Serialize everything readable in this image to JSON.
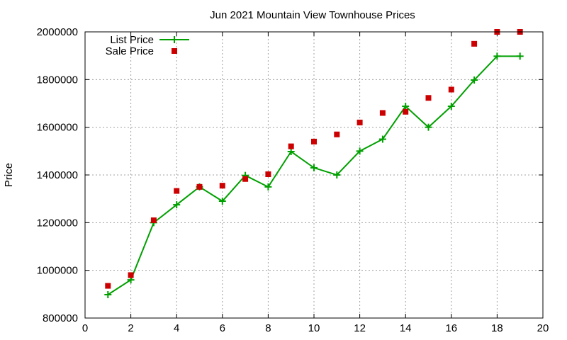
{
  "chart_data": {
    "type": "line",
    "title": "Jun 2021 Mountain View Townhouse Prices",
    "xlabel": "",
    "ylabel": "Price",
    "xlim": [
      0,
      20
    ],
    "ylim": [
      800000,
      2000000
    ],
    "x_ticks": [
      "0",
      "2",
      "4",
      "6",
      "8",
      "10",
      "12",
      "14",
      "16",
      "18",
      "20"
    ],
    "y_ticks": [
      "800000",
      "1000000",
      "1200000",
      "1400000",
      "1600000",
      "1800000",
      "2000000"
    ],
    "grid": true,
    "legend_position": "top-left",
    "series": [
      {
        "name": "List Price",
        "style": "line-plus",
        "color": "#00a000",
        "x": [
          1,
          2,
          3,
          4,
          5,
          6,
          7,
          8,
          9,
          10,
          11,
          12,
          13,
          14,
          15,
          16,
          17,
          18,
          19
        ],
        "y": [
          898000,
          960000,
          1200000,
          1275000,
          1350000,
          1290000,
          1398000,
          1350000,
          1498000,
          1430000,
          1400000,
          1500000,
          1550000,
          1688000,
          1600000,
          1688000,
          1798000,
          1898000,
          1898000
        ]
      },
      {
        "name": "Sale Price",
        "style": "square",
        "color": "#cc0000",
        "x": [
          1,
          2,
          3,
          4,
          5,
          6,
          7,
          8,
          9,
          10,
          11,
          12,
          13,
          14,
          15,
          16,
          17,
          18,
          19
        ],
        "y": [
          935000,
          980000,
          1210000,
          1333000,
          1350000,
          1355000,
          1383000,
          1403000,
          1520000,
          1540000,
          1570000,
          1620000,
          1660000,
          1665000,
          1723000,
          1758000,
          1950000,
          2000000,
          2000000
        ]
      }
    ]
  }
}
